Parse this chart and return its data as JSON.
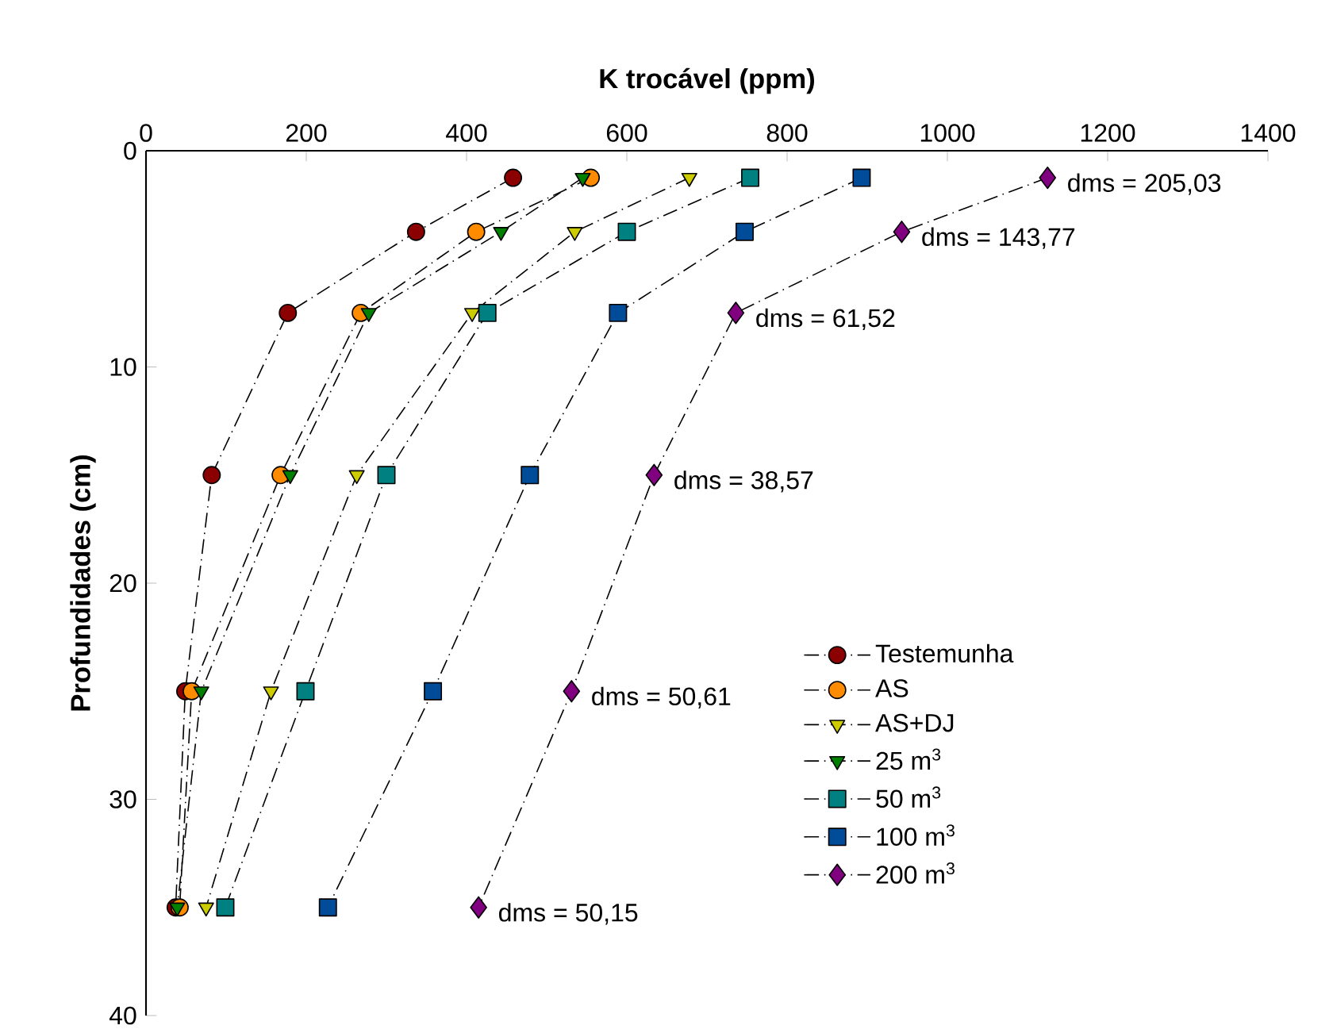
{
  "chart_data": {
    "type": "line",
    "xlabel": "K trocável (ppm)",
    "ylabel": "Profundidades (cm)",
    "xlim": [
      0,
      1400
    ],
    "xticks": [
      0,
      200,
      400,
      600,
      800,
      1000,
      1200,
      1400
    ],
    "ylim": [
      40,
      0
    ],
    "yticks": [
      0,
      10,
      20,
      30,
      40
    ],
    "grid": false,
    "legend": "bottom right",
    "line_style": "dashed",
    "series": [
      {
        "name": "Testemunha",
        "color": "#8b0000",
        "marker": "circle",
        "x": [
          458,
          337,
          177,
          82,
          49,
          37
        ],
        "values": [
          1.25,
          3.75,
          7.5,
          15,
          25,
          35
        ]
      },
      {
        "name": "AS",
        "color": "#ff8c00",
        "marker": "circle",
        "x": [
          555,
          412,
          268,
          168,
          57,
          42
        ],
        "values": [
          1.25,
          3.75,
          7.5,
          15,
          25,
          35
        ]
      },
      {
        "name": "AS+DJ",
        "color": "#cccc00",
        "marker": "triangle",
        "x": [
          678,
          535,
          407,
          263,
          156,
          75
        ],
        "values": [
          1.25,
          3.75,
          7.5,
          15,
          25,
          35
        ]
      },
      {
        "name": "25 m$^{3}$",
        "color": "#008000",
        "marker": "triangle",
        "x": [
          545,
          443,
          278,
          180,
          69,
          39
        ],
        "values": [
          1.25,
          3.75,
          7.5,
          15,
          25,
          35
        ]
      },
      {
        "name": "50 m$^{3}$",
        "color": "#008080",
        "marker": "square",
        "x": [
          754,
          600,
          426,
          300,
          199,
          99
        ],
        "values": [
          1.25,
          3.75,
          7.5,
          15,
          25,
          35
        ]
      },
      {
        "name": "100 m$^{3}$",
        "color": "#004c99",
        "marker": "square",
        "x": [
          893,
          747,
          589,
          479,
          358,
          227
        ],
        "values": [
          1.25,
          3.75,
          7.5,
          15,
          25,
          35
        ]
      },
      {
        "name": "200 m$^{3}$",
        "color": "#800080",
        "marker": "diamond",
        "x": [
          1125,
          943,
          736,
          634,
          531,
          415
        ],
        "values": [
          1.25,
          3.75,
          7.5,
          15,
          25,
          35
        ]
      }
    ],
    "annotations": [
      {
        "text": "dms = 205,03",
        "x": 1125,
        "y": 1.25
      },
      {
        "text": "dms = 143,77",
        "x": 943,
        "y": 3.75
      },
      {
        "text": "dms = 61,52",
        "x": 736,
        "y": 7.5
      },
      {
        "text": "dms = 38,57",
        "x": 634,
        "y": 15
      },
      {
        "text": "dms = 50,61",
        "x": 531,
        "y": 25
      },
      {
        "text": "dms = 50,15",
        "x": 415,
        "y": 35
      }
    ]
  }
}
